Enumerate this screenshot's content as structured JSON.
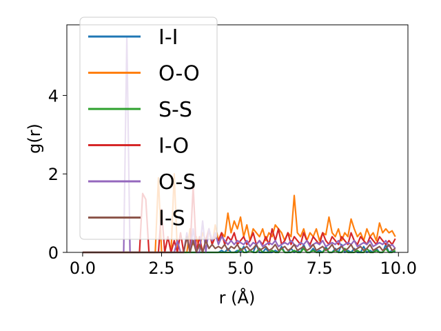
{
  "chart_data": {
    "type": "line",
    "title": "",
    "xlabel": "r (Å)",
    "ylabel": "g(r)",
    "xlim": [
      -0.5,
      10.3
    ],
    "ylim": [
      0,
      5.8
    ],
    "xticks": [
      0.0,
      2.5,
      5.0,
      7.5,
      10.0
    ],
    "xtick_labels": [
      "0.0",
      "2.5",
      "5.0",
      "7.5",
      "10.0"
    ],
    "yticks": [
      0,
      2,
      4
    ],
    "ytick_labels": [
      "0",
      "2",
      "4"
    ],
    "grid": false,
    "legend_position": "top-left",
    "x": [
      0.0,
      0.1,
      0.2,
      0.3,
      0.4,
      0.5,
      0.6,
      0.7,
      0.8,
      0.9,
      1.0,
      1.1,
      1.2,
      1.3,
      1.4,
      1.5,
      1.6,
      1.7,
      1.8,
      1.9,
      2.0,
      2.1,
      2.2,
      2.3,
      2.4,
      2.5,
      2.6,
      2.7,
      2.8,
      2.9,
      3.0,
      3.1,
      3.2,
      3.3,
      3.4,
      3.5,
      3.6,
      3.7,
      3.8,
      3.9,
      4.0,
      4.1,
      4.2,
      4.3,
      4.4,
      4.5,
      4.6,
      4.7,
      4.8,
      4.9,
      5.0,
      5.1,
      5.2,
      5.3,
      5.4,
      5.5,
      5.6,
      5.7,
      5.8,
      5.9,
      6.0,
      6.1,
      6.2,
      6.3,
      6.4,
      6.5,
      6.6,
      6.7,
      6.8,
      6.9,
      7.0,
      7.1,
      7.2,
      7.3,
      7.4,
      7.5,
      7.6,
      7.7,
      7.8,
      7.9,
      8.0,
      8.1,
      8.2,
      8.3,
      8.4,
      8.5,
      8.6,
      8.7,
      8.8,
      8.9,
      9.0,
      9.1,
      9.2,
      9.3,
      9.4,
      9.5,
      9.6,
      9.7,
      9.8,
      9.9
    ],
    "series": [
      {
        "name": "I-I",
        "color": "#1f77b4",
        "values": [
          0,
          0,
          0,
          0,
          0,
          0,
          0,
          0,
          0,
          0,
          0,
          0,
          0,
          0,
          0,
          0,
          0,
          0,
          0,
          0,
          0,
          0,
          0,
          0,
          0,
          0,
          0,
          0,
          0,
          0,
          0,
          0,
          0,
          0,
          0,
          0,
          0,
          0,
          0,
          0,
          0,
          0,
          0,
          0,
          0.05,
          0,
          0.1,
          0,
          0,
          0.05,
          0,
          0.15,
          0,
          0.05,
          0,
          0.2,
          0,
          0,
          0.1,
          0,
          0,
          0.05,
          0,
          0.15,
          0,
          0,
          0.1,
          0,
          0.05,
          0,
          0.2,
          0,
          0,
          0.1,
          0,
          0.05,
          0,
          0.15,
          0,
          0,
          0.1,
          0,
          0.2,
          0,
          0.05,
          0,
          0.1,
          0,
          0,
          0.15,
          0,
          0.05,
          0,
          0.1,
          0,
          0,
          0.2,
          0,
          0.05,
          0
        ]
      },
      {
        "name": "O-O",
        "color": "#ff7f0e",
        "values": [
          0,
          0,
          0,
          0,
          0,
          0,
          0,
          0,
          0,
          0,
          0,
          0,
          0,
          0,
          0,
          0,
          0,
          0,
          0,
          0,
          0,
          0,
          0,
          0,
          1.9,
          0,
          0,
          0,
          0,
          2.0,
          0,
          0,
          0,
          0,
          0.6,
          0.2,
          0.4,
          0.1,
          0.5,
          0.3,
          0.6,
          0.2,
          0.7,
          0.3,
          0.5,
          0.4,
          1.0,
          0.5,
          0.8,
          0.6,
          0.9,
          0.4,
          0.7,
          0.3,
          0.6,
          0.5,
          0.4,
          0.6,
          0.3,
          0.5,
          0.4,
          0.7,
          0.6,
          0.5,
          0.3,
          0.5,
          0.4,
          1.45,
          0.5,
          0.4,
          0.6,
          0.3,
          0.5,
          0.4,
          0.6,
          0.3,
          0.5,
          0.45,
          0.9,
          0.5,
          0.4,
          0.6,
          0.3,
          0.5,
          0.4,
          0.85,
          0.6,
          0.4,
          0.5,
          0.3,
          0.6,
          0.4,
          0.5,
          0.3,
          0.75,
          0.5,
          0.6,
          0.5,
          0.55,
          0.4
        ]
      },
      {
        "name": "S-S",
        "color": "#2ca02c",
        "values": [
          0,
          0,
          0,
          0,
          0,
          0,
          0,
          0,
          0,
          0,
          0,
          0,
          0,
          0,
          0,
          0,
          0,
          0,
          0,
          0,
          0,
          0,
          0,
          0,
          0,
          0,
          0,
          0,
          0,
          0,
          0,
          0,
          0,
          0,
          0,
          0,
          0,
          0,
          0,
          0,
          0,
          0,
          0,
          0,
          0,
          0,
          0,
          0,
          0,
          0,
          0.1,
          0,
          0,
          0.05,
          0,
          0,
          0.1,
          0,
          0,
          0,
          0.05,
          0,
          0,
          0.1,
          0,
          0,
          0,
          0.05,
          0,
          0,
          0.1,
          0,
          0,
          0.05,
          0,
          0,
          0,
          0.1,
          0,
          0,
          0.05,
          0,
          0,
          0.1,
          0,
          0,
          0,
          0.05,
          0,
          0,
          0.1,
          0,
          0,
          0.05,
          0,
          0,
          0.1,
          0,
          0,
          0.05
        ]
      },
      {
        "name": "I-O",
        "color": "#d62728",
        "values": [
          0,
          0,
          0,
          0,
          0,
          0,
          0,
          0,
          0,
          0,
          0,
          0,
          0,
          0,
          0,
          0,
          0,
          0,
          0,
          1.5,
          1.35,
          0,
          0,
          0,
          0,
          1.1,
          0,
          0.4,
          0,
          0.3,
          0,
          0.5,
          0,
          0.4,
          0,
          1.7,
          0,
          0.4,
          0,
          0.3,
          0.6,
          0.2,
          0.4,
          0.3,
          0.5,
          0.2,
          0.4,
          0.3,
          0.5,
          0.2,
          0.3,
          0.4,
          0.2,
          0.3,
          0.5,
          0.2,
          0.3,
          0.2,
          0.4,
          0.2,
          0.6,
          0.3,
          0.6,
          0.2,
          0.3,
          0.5,
          0.2,
          0.4,
          0.3,
          0.2,
          0.5,
          0.3,
          0.2,
          0.4,
          0.3,
          0.2,
          0.5,
          0.3,
          0.2,
          0.4,
          0.3,
          0.2,
          0.4,
          0.3,
          0.2,
          0.5,
          0.3,
          0.2,
          0.4,
          0.3,
          0.2,
          0.4,
          0.3,
          0.2,
          0.4,
          0.3,
          0.2,
          0.3,
          0.2,
          0.35
        ]
      },
      {
        "name": "O-S",
        "color": "#9467bd",
        "values": [
          0,
          0,
          0,
          0,
          0,
          0,
          0,
          0,
          0,
          0,
          0,
          0,
          0,
          0,
          5.5,
          0,
          0,
          0,
          0,
          0,
          0,
          0,
          0,
          0,
          0,
          0,
          0,
          0,
          0,
          0,
          0.3,
          0,
          0,
          0.5,
          0,
          0.6,
          0,
          0,
          0.8,
          0,
          0.6,
          0.3,
          0.5,
          0.2,
          0.4,
          0.3,
          0.2,
          0.3,
          0.2,
          0.3,
          0.25,
          0.2,
          0.3,
          0.15,
          0.25,
          0.2,
          0.3,
          0.15,
          0.2,
          0.25,
          0.2,
          0.3,
          0.15,
          0.2,
          0.25,
          0.2,
          0.3,
          0.2,
          0.15,
          0.25,
          0.2,
          0.3,
          0.15,
          0.2,
          0.25,
          0.2,
          0.3,
          0.15,
          0.2,
          0.25,
          0.2,
          0.3,
          0.15,
          0.2,
          0.25,
          0.2,
          0.3,
          0.15,
          0.2,
          0.25,
          0.2,
          0.3,
          0.15,
          0.2,
          0.25,
          0.2,
          0.3,
          0.15,
          0.2,
          0.1
        ]
      },
      {
        "name": "I-S",
        "color": "#8c564b",
        "values": [
          0,
          0,
          0,
          0,
          0,
          0,
          0,
          0,
          0,
          0,
          0,
          0,
          0,
          0,
          0,
          0,
          0,
          0,
          0,
          0,
          0,
          0,
          0,
          0,
          0,
          0,
          0,
          0,
          0,
          0,
          0,
          0,
          0,
          0.4,
          0,
          0.3,
          0,
          0.2,
          0,
          0.3,
          0.1,
          0.2,
          0.1,
          0.15,
          0.1,
          0.2,
          0.05,
          0.15,
          0.1,
          0.2,
          0.05,
          0.1,
          0.15,
          0.05,
          0.1,
          0.2,
          0.05,
          0.1,
          0.15,
          0.05,
          0.1,
          0.2,
          0.05,
          0.1,
          0.15,
          0.05,
          0.1,
          0.2,
          0.05,
          0.1,
          0.15,
          0.05,
          0.1,
          0.2,
          0.05,
          0.1,
          0.15,
          0.05,
          0.1,
          0.2,
          0.05,
          0.1,
          0.15,
          0.05,
          0.1,
          0.2,
          0.05,
          0.1,
          0.15,
          0.05,
          0.1,
          0.2,
          0.05,
          0.1,
          0.15,
          0.05,
          0.1,
          0.2,
          0.05,
          0.1
        ]
      }
    ]
  }
}
